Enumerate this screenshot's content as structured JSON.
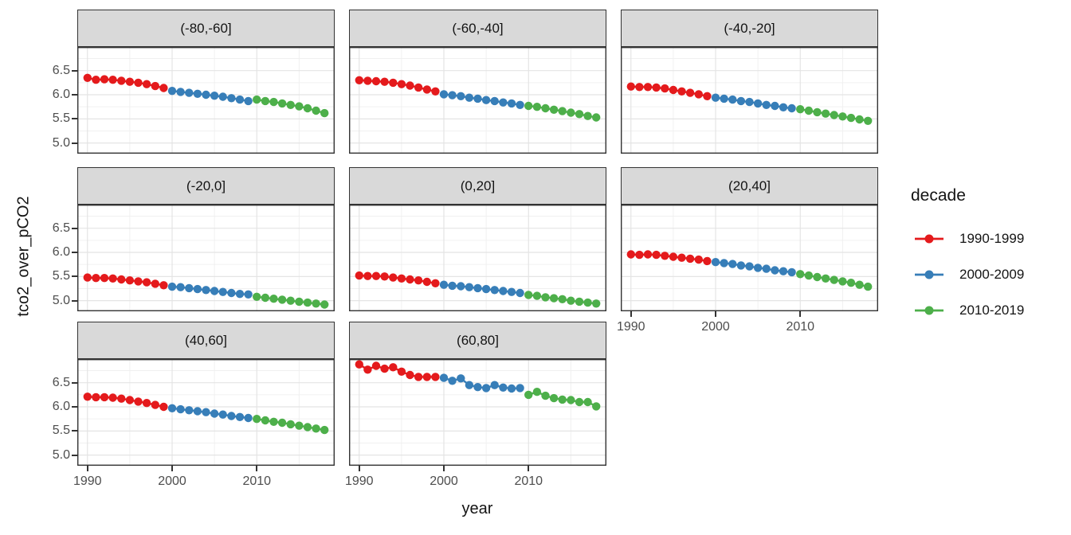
{
  "axes": {
    "y_title": "tco2_over_pCO2",
    "x_title": "year",
    "y_tick_labels": [
      "6.5",
      "6.0",
      "5.5",
      "5.0"
    ],
    "x_tick_labels": [
      "1990",
      "2000",
      "2010"
    ]
  },
  "legend": {
    "title": "decade"
  },
  "chart_data": {
    "type": "scatter",
    "title": "",
    "xlabel": "year",
    "ylabel": "tco2_over_pCO2",
    "facet_variable": "latitude band",
    "legend_title": "decade",
    "legend_position": "right",
    "grid": true,
    "x": [
      1990,
      1991,
      1992,
      1993,
      1994,
      1995,
      1996,
      1997,
      1998,
      1999,
      2000,
      2001,
      2002,
      2003,
      2004,
      2005,
      2006,
      2007,
      2008,
      2009,
      2010,
      2011,
      2012,
      2013,
      2014,
      2015,
      2016,
      2017,
      2018
    ],
    "x_ticks": [
      1990,
      2000,
      2010
    ],
    "y_ticks": [
      6.5,
      6.0,
      5.5,
      5.0
    ],
    "x_minor_ticks": [
      1995,
      2005,
      2015
    ],
    "y_minor_ticks": [
      6.75,
      6.25,
      5.75,
      5.25
    ],
    "xlim": [
      1988.8,
      2019.2
    ],
    "ylim": [
      4.78,
      6.99
    ],
    "groups": [
      {
        "label": "1990-1999",
        "color": "#E41A1C",
        "year_range": [
          1990,
          1999
        ]
      },
      {
        "label": "2000-2009",
        "color": "#377EB8",
        "year_range": [
          2000,
          2009
        ]
      },
      {
        "label": "2010-2019",
        "color": "#4DAF4A",
        "year_range": [
          2010,
          2019
        ]
      }
    ],
    "facets": [
      {
        "label": "(-80,-60]",
        "values": [
          6.35,
          6.31,
          6.32,
          6.31,
          6.29,
          6.27,
          6.25,
          6.22,
          6.18,
          6.14,
          6.08,
          6.06,
          6.04,
          6.02,
          6.0,
          5.98,
          5.96,
          5.93,
          5.9,
          5.87,
          5.9,
          5.87,
          5.85,
          5.82,
          5.79,
          5.76,
          5.72,
          5.67,
          5.62
        ]
      },
      {
        "label": "(-60,-40]",
        "values": [
          6.3,
          6.29,
          6.28,
          6.27,
          6.25,
          6.22,
          6.19,
          6.15,
          6.11,
          6.07,
          6.01,
          5.99,
          5.97,
          5.94,
          5.92,
          5.89,
          5.87,
          5.84,
          5.82,
          5.79,
          5.77,
          5.75,
          5.72,
          5.69,
          5.66,
          5.63,
          5.6,
          5.56,
          5.53
        ]
      },
      {
        "label": "(-40,-20]",
        "values": [
          6.17,
          6.16,
          6.16,
          6.15,
          6.13,
          6.1,
          6.07,
          6.04,
          6.01,
          5.97,
          5.94,
          5.92,
          5.9,
          5.87,
          5.85,
          5.82,
          5.79,
          5.77,
          5.74,
          5.72,
          5.7,
          5.67,
          5.64,
          5.61,
          5.58,
          5.55,
          5.52,
          5.49,
          5.46
        ]
      },
      {
        "label": "(-20,0]",
        "values": [
          5.48,
          5.47,
          5.47,
          5.46,
          5.44,
          5.42,
          5.4,
          5.38,
          5.35,
          5.32,
          5.29,
          5.28,
          5.26,
          5.24,
          5.22,
          5.2,
          5.18,
          5.16,
          5.14,
          5.13,
          5.08,
          5.06,
          5.04,
          5.02,
          5.0,
          4.98,
          4.96,
          4.94,
          4.92
        ]
      },
      {
        "label": "(0,20]",
        "values": [
          5.52,
          5.51,
          5.51,
          5.5,
          5.48,
          5.46,
          5.44,
          5.42,
          5.39,
          5.36,
          5.33,
          5.31,
          5.3,
          5.28,
          5.26,
          5.24,
          5.22,
          5.2,
          5.18,
          5.16,
          5.12,
          5.1,
          5.07,
          5.05,
          5.03,
          5.0,
          4.98,
          4.96,
          4.94
        ]
      },
      {
        "label": "(20,40]",
        "values": [
          5.96,
          5.95,
          5.96,
          5.95,
          5.93,
          5.91,
          5.89,
          5.87,
          5.85,
          5.82,
          5.8,
          5.78,
          5.76,
          5.73,
          5.71,
          5.68,
          5.66,
          5.63,
          5.61,
          5.59,
          5.55,
          5.52,
          5.49,
          5.46,
          5.43,
          5.4,
          5.37,
          5.33,
          5.29
        ]
      },
      {
        "label": "(40,60]",
        "values": [
          6.21,
          6.2,
          6.2,
          6.19,
          6.17,
          6.14,
          6.11,
          6.08,
          6.04,
          6.0,
          5.97,
          5.95,
          5.93,
          5.91,
          5.89,
          5.86,
          5.84,
          5.81,
          5.79,
          5.77,
          5.75,
          5.72,
          5.69,
          5.67,
          5.64,
          5.61,
          5.58,
          5.55,
          5.52
        ]
      },
      {
        "label": "(60,80]",
        "values": [
          6.88,
          6.77,
          6.85,
          6.79,
          6.82,
          6.73,
          6.66,
          6.62,
          6.62,
          6.62,
          6.6,
          6.54,
          6.59,
          6.45,
          6.41,
          6.39,
          6.45,
          6.4,
          6.38,
          6.39,
          6.25,
          6.31,
          6.23,
          6.18,
          6.15,
          6.14,
          6.1,
          6.1,
          6.01
        ]
      }
    ]
  }
}
